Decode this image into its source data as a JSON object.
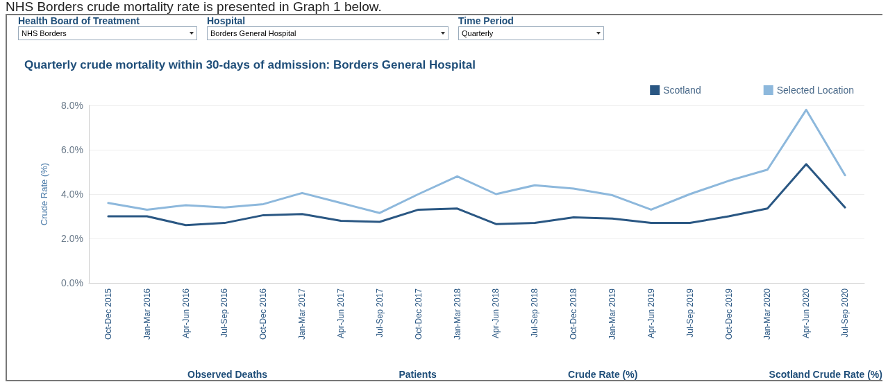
{
  "chart_data": {
    "type": "line",
    "title": "Quarterly crude mortality within 30-days of admission: Borders General Hospital",
    "ylabel": "Crude Rate (%)",
    "annotations": [
      "NHS Borders crude mortality rate is presented in Graph 1 below.",
      "Health Board of Treatment",
      "NHS Borders",
      "Hospital",
      "Borders General Hospital",
      "Time Period",
      "Quarterly",
      "Observed Deaths",
      "Patients",
      "Crude Rate (%)",
      "Scotland Crude Rate (%)"
    ],
    "categories": [
      "Oct-Dec 2015",
      "Jan-Mar 2016",
      "Apr-Jun 2016",
      "Jul-Sep 2016",
      "Oct-Dec 2016",
      "Jan-Mar 2017",
      "Apr-Jun 2017",
      "Jul-Sep 2017",
      "Oct-Dec 2017",
      "Jan-Mar 2018",
      "Apr-Jun 2018",
      "Jul-Sep 2018",
      "Oct-Dec 2018",
      "Jan-Mar 2019",
      "Apr-Jun 2019",
      "Jul-Sep 2019",
      "Oct-Dec 2019",
      "Jan-Mar 2020",
      "Apr-Jun 2020",
      "Jul-Sep 2020"
    ],
    "series": [
      {
        "name": "Scotland",
        "color": "#2a5783",
        "values": [
          3.0,
          3.0,
          2.6,
          2.7,
          3.05,
          3.1,
          2.8,
          2.75,
          3.3,
          3.35,
          2.65,
          2.7,
          2.95,
          2.9,
          2.7,
          2.7,
          3.0,
          3.35,
          5.35,
          3.4
        ]
      },
      {
        "name": "Selected Location",
        "color": "#8db8dc",
        "values": [
          3.6,
          3.3,
          3.5,
          3.4,
          3.55,
          4.05,
          3.6,
          3.15,
          4.0,
          4.8,
          4.0,
          4.4,
          4.25,
          3.95,
          3.3,
          4.0,
          4.6,
          5.1,
          7.8,
          4.85
        ]
      }
    ],
    "ylim": [
      0,
      8
    ],
    "yticks": [
      {
        "value": 0,
        "label": "0.0%"
      },
      {
        "value": 2,
        "label": "2.0%"
      },
      {
        "value": 4,
        "label": "4.0%"
      },
      {
        "value": 6,
        "label": "6.0%"
      },
      {
        "value": 8,
        "label": "8.0%"
      }
    ],
    "grid": "y",
    "legend": "top right",
    "marker": "none",
    "line_style": "solid"
  }
}
